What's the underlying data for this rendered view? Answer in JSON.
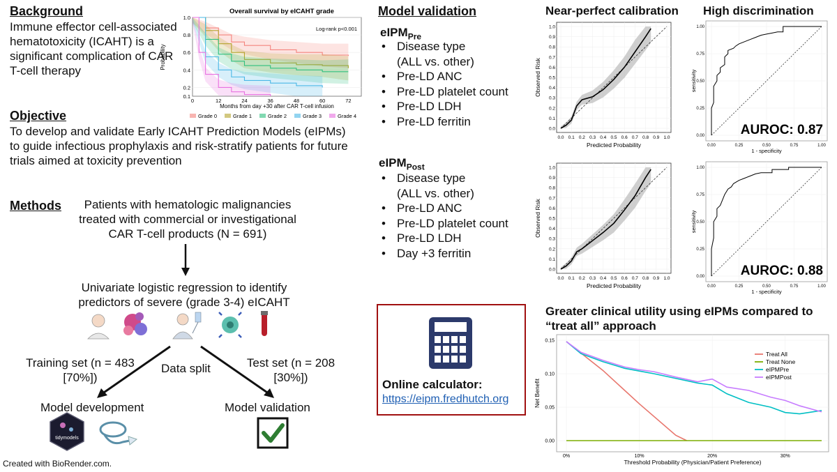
{
  "background": {
    "heading": "Background",
    "text": "Immune effector cell-associated hematotoxicity (ICAHT) is a significant complication of CAR T-cell therapy"
  },
  "km": {
    "title": "Overall survival by eICAHT grade",
    "pvalue": "Log-rank p<0.001",
    "ylabel": "Probability",
    "xlabel": "Months from day +30 after CAR T-cell infusion",
    "yticks": [
      "0.1",
      "0.2",
      "0.4",
      "0.6",
      "0.8",
      "1.0"
    ],
    "xticks": [
      "0",
      "12",
      "24",
      "36",
      "48",
      "60",
      "72"
    ],
    "legend": [
      {
        "name": "Grade 0",
        "color": "#F4837D"
      },
      {
        "name": "Grade 1",
        "color": "#B4A42C"
      },
      {
        "name": "Grade 2",
        "color": "#2FBF7E"
      },
      {
        "name": "Grade 3",
        "color": "#4AB7E6"
      },
      {
        "name": "Grade 4",
        "color": "#E870E0"
      }
    ]
  },
  "objective": {
    "heading": "Objective",
    "text": "To develop and validate Early ICAHT Prediction Models (eIPMs) to guide infectious prophylaxis and risk-stratify patients for future trials aimed at toxicity prevention"
  },
  "methods": {
    "heading": "Methods",
    "patients": "Patients with hematologic malignancies treated with commercial or investigational CAR T-cell products (N = 691)",
    "regression": "Univariate logistic regression to identify predictors of severe (grade 3-4) eICAHT",
    "split": "Data split",
    "training": "Training set (n = 483 [70%])",
    "test": "Test set (n = 208 [30%])",
    "development": "Model development",
    "validation": "Model validation",
    "tidymodels": "tidymodels",
    "credit": "Created with BioRender.com."
  },
  "model_validation": {
    "heading": "Model validation",
    "pre": {
      "name": "eIPM",
      "sub": "Pre",
      "items": [
        "Disease type",
        "(ALL vs. other)",
        "Pre-LD ANC",
        "Pre-LD platelet count",
        "Pre-LD LDH",
        "Pre-LD ferritin"
      ]
    },
    "post": {
      "name": "eIPM",
      "sub": "Post",
      "items": [
        "Disease type",
        "(ALL vs. other)",
        "Pre-LD ANC",
        "Pre-LD platelet count",
        "Pre-LD LDH",
        "Day +3 ferritin"
      ]
    }
  },
  "calculator": {
    "label": "Online calculator:",
    "url": "https://eipm.fredhutch.org"
  },
  "calibration": {
    "heading": "Near-perfect calibration",
    "xlabel": "Predicted Probability",
    "ylabel": "Observed Risk",
    "ticks": [
      "0.0",
      "0.1",
      "0.2",
      "0.3",
      "0.4",
      "0.5",
      "0.6",
      "0.7",
      "0.8",
      "0.9",
      "1.0"
    ]
  },
  "discrimination": {
    "heading": "High discrimination",
    "xlabel": "1 - specificity",
    "ylabel": "sensitivity",
    "xticks": [
      "0.00",
      "0.25",
      "0.50",
      "0.75",
      "1.00"
    ],
    "yticks": [
      "0.00",
      "0.25",
      "0.50",
      "0.75",
      "1.00"
    ],
    "auroc_pre": "AUROC: 0.87",
    "auroc_post": "AUROC: 0.88"
  },
  "dca": {
    "heading": "Greater clinical utility using eIPMs compared to “treat all” approach",
    "xlabel": "Threshold Probability (Physician/Patient Preference)",
    "ylabel": "Net Benefit",
    "xticks": [
      "0%",
      "10%",
      "20%",
      "30%"
    ],
    "yticks": [
      "0.00",
      "0.05",
      "0.10",
      "0.15"
    ],
    "legend": [
      {
        "name": "Treat All",
        "color": "#E8766D"
      },
      {
        "name": "Treat None",
        "color": "#7CAE00"
      },
      {
        "name": "eIPMPre",
        "color": "#00BFC4"
      },
      {
        "name": "eIPMPost",
        "color": "#C77CFF"
      }
    ]
  },
  "chart_data": [
    {
      "type": "line",
      "title": "Overall survival by eICAHT grade",
      "xlabel": "Months from day +30 after CAR T-cell infusion",
      "ylabel": "Probability",
      "xlim": [
        0,
        78
      ],
      "ylim": [
        0.1,
        1.0
      ],
      "annotation": "Log-rank p<0.001",
      "series": [
        {
          "name": "Grade 0",
          "x": [
            0,
            6,
            12,
            18,
            24,
            36,
            48,
            60,
            72
          ],
          "y": [
            1.0,
            0.88,
            0.8,
            0.72,
            0.68,
            0.63,
            0.6,
            0.57,
            0.56
          ]
        },
        {
          "name": "Grade 1",
          "x": [
            0,
            6,
            12,
            18,
            24,
            36,
            48,
            60,
            72
          ],
          "y": [
            1.0,
            0.85,
            0.7,
            0.6,
            0.52,
            0.48,
            0.46,
            0.45,
            0.42
          ]
        },
        {
          "name": "Grade 2",
          "x": [
            0,
            6,
            12,
            18,
            24,
            36,
            48,
            60,
            72
          ],
          "y": [
            1.0,
            0.75,
            0.58,
            0.5,
            0.45,
            0.42,
            0.4,
            0.38,
            0.38
          ]
        },
        {
          "name": "Grade 3",
          "x": [
            0,
            6,
            12,
            18,
            24,
            36,
            48,
            60
          ],
          "y": [
            1.0,
            0.55,
            0.4,
            0.32,
            0.28,
            0.25,
            0.22,
            0.2
          ]
        },
        {
          "name": "Grade 4",
          "x": [
            0,
            3,
            6,
            12,
            18,
            24,
            36
          ],
          "y": [
            1.0,
            0.6,
            0.35,
            0.2,
            0.15,
            0.12,
            0.1
          ]
        }
      ]
    },
    {
      "type": "line",
      "title": "",
      "xlabel": "Predicted Probability",
      "ylabel": "Observed Risk",
      "xlim": [
        0,
        1
      ],
      "ylim": [
        0,
        1
      ],
      "series": [
        {
          "x": [
            0.0,
            0.05,
            0.1,
            0.15,
            0.2,
            0.3,
            0.4,
            0.5,
            0.6,
            0.7,
            0.8,
            0.85
          ],
          "y": [
            0.0,
            0.03,
            0.08,
            0.22,
            0.28,
            0.31,
            0.38,
            0.48,
            0.6,
            0.75,
            0.9,
            0.98
          ]
        },
        {
          "x": [
            0,
            1
          ],
          "y": [
            0,
            1
          ]
        }
      ]
    },
    {
      "type": "line",
      "title": "",
      "xlabel": "1 - specificity",
      "ylabel": "sensitivity",
      "xlim": [
        0,
        1
      ],
      "ylim": [
        0,
        1
      ],
      "annotation": "AUROC: 0.87",
      "series": [
        {
          "x": [
            0,
            0,
            0.02,
            0.02,
            0.05,
            0.05,
            0.08,
            0.08,
            0.12,
            0.12,
            0.15,
            0.15,
            0.2,
            0.22,
            0.25,
            0.3,
            0.35,
            0.4,
            0.45,
            0.5,
            0.55,
            0.6,
            0.65,
            0.65,
            0.75,
            0.75,
            0.85,
            0.85,
            1.0
          ],
          "y": [
            0,
            0.25,
            0.3,
            0.45,
            0.5,
            0.55,
            0.58,
            0.62,
            0.65,
            0.72,
            0.75,
            0.78,
            0.8,
            0.82,
            0.84,
            0.86,
            0.88,
            0.9,
            0.92,
            0.93,
            0.94,
            0.95,
            0.95,
            1.0,
            1.0,
            1.0,
            1.0,
            1.0,
            1.0
          ]
        },
        {
          "x": [
            0,
            1
          ],
          "y": [
            0,
            1
          ]
        }
      ]
    },
    {
      "type": "line",
      "title": "",
      "xlabel": "Predicted Probability",
      "ylabel": "Observed Risk",
      "xlim": [
        0,
        1
      ],
      "ylim": [
        0,
        1
      ],
      "series": [
        {
          "x": [
            0.0,
            0.05,
            0.1,
            0.15,
            0.2,
            0.3,
            0.4,
            0.5,
            0.6,
            0.7,
            0.8,
            0.85
          ],
          "y": [
            0.0,
            0.03,
            0.08,
            0.17,
            0.2,
            0.28,
            0.36,
            0.45,
            0.58,
            0.72,
            0.9,
            0.98
          ]
        },
        {
          "x": [
            0,
            1
          ],
          "y": [
            0,
            1
          ]
        }
      ]
    },
    {
      "type": "line",
      "title": "",
      "xlabel": "1 - specificity",
      "ylabel": "sensitivity",
      "xlim": [
        0,
        1
      ],
      "ylim": [
        0,
        1
      ],
      "annotation": "AUROC: 0.88",
      "series": [
        {
          "x": [
            0,
            0,
            0.02,
            0.02,
            0.05,
            0.05,
            0.08,
            0.1,
            0.12,
            0.15,
            0.18,
            0.2,
            0.25,
            0.3,
            0.35,
            0.4,
            0.45,
            0.5,
            0.55,
            0.55,
            0.7,
            0.7,
            1.0
          ],
          "y": [
            0,
            0.25,
            0.35,
            0.5,
            0.55,
            0.62,
            0.65,
            0.7,
            0.75,
            0.8,
            0.82,
            0.85,
            0.88,
            0.9,
            0.92,
            0.94,
            0.95,
            0.95,
            0.95,
            0.98,
            0.98,
            1.0,
            1.0
          ]
        },
        {
          "x": [
            0,
            1
          ],
          "y": [
            0,
            1
          ]
        }
      ]
    },
    {
      "type": "line",
      "title": "",
      "xlabel": "Threshold Probability (Physician/Patient Preference)",
      "ylabel": "Net Benefit",
      "xlim": [
        0,
        0.35
      ],
      "ylim": [
        0,
        0.15
      ],
      "series": [
        {
          "name": "Treat All",
          "x": [
            0,
            0.05,
            0.1,
            0.15,
            0.165
          ],
          "y": [
            0.148,
            0.105,
            0.055,
            0.008,
            0
          ]
        },
        {
          "name": "Treat None",
          "x": [
            0,
            0.35
          ],
          "y": [
            0,
            0
          ]
        },
        {
          "name": "eIPMPre",
          "x": [
            0,
            0.02,
            0.05,
            0.08,
            0.1,
            0.12,
            0.15,
            0.18,
            0.2,
            0.22,
            0.25,
            0.28,
            0.3,
            0.32,
            0.35
          ],
          "y": [
            0.148,
            0.13,
            0.118,
            0.108,
            0.104,
            0.1,
            0.093,
            0.086,
            0.083,
            0.07,
            0.057,
            0.05,
            0.042,
            0.04,
            0.045
          ]
        },
        {
          "name": "eIPMPost",
          "x": [
            0,
            0.02,
            0.05,
            0.08,
            0.1,
            0.12,
            0.15,
            0.18,
            0.2,
            0.22,
            0.25,
            0.28,
            0.3,
            0.32,
            0.35
          ],
          "y": [
            0.148,
            0.132,
            0.12,
            0.11,
            0.106,
            0.103,
            0.095,
            0.088,
            0.092,
            0.08,
            0.075,
            0.065,
            0.06,
            0.052,
            0.043
          ]
        }
      ]
    }
  ]
}
